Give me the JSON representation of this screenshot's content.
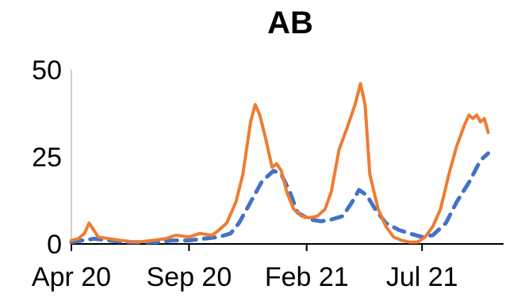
{
  "chart_data": {
    "type": "line",
    "title": "AB",
    "xlabel": "",
    "ylabel": "",
    "x_start": "2020-04-01",
    "x_end": "2021-10-15",
    "ylim": [
      0,
      50
    ],
    "yticks": [
      0,
      25,
      50
    ],
    "xticks": [
      {
        "label": "Apr 20",
        "date": "2020-04-01"
      },
      {
        "label": "Sep 20",
        "date": "2020-09-01"
      },
      {
        "label": "Feb 21",
        "date": "2021-02-01"
      },
      {
        "label": "Jul 21",
        "date": "2021-07-01"
      }
    ],
    "grid": false,
    "legend": "none",
    "series": [
      {
        "color": "#ED7D31",
        "style": "solid",
        "points": [
          [
            "2020-04-01",
            1
          ],
          [
            "2020-04-10",
            1.5
          ],
          [
            "2020-04-18",
            3
          ],
          [
            "2020-04-24",
            6
          ],
          [
            "2020-04-30",
            4
          ],
          [
            "2020-05-06",
            2
          ],
          [
            "2020-05-20",
            1.5
          ],
          [
            "2020-06-05",
            1
          ],
          [
            "2020-06-25",
            0.5
          ],
          [
            "2020-07-15",
            1
          ],
          [
            "2020-08-01",
            1.5
          ],
          [
            "2020-08-15",
            2.5
          ],
          [
            "2020-09-01",
            2
          ],
          [
            "2020-09-15",
            3
          ],
          [
            "2020-10-01",
            2.5
          ],
          [
            "2020-10-10",
            4
          ],
          [
            "2020-10-20",
            6
          ],
          [
            "2020-11-01",
            12
          ],
          [
            "2020-11-10",
            20
          ],
          [
            "2020-11-20",
            35
          ],
          [
            "2020-11-26",
            40
          ],
          [
            "2020-12-02",
            37
          ],
          [
            "2020-12-10",
            30
          ],
          [
            "2020-12-18",
            22
          ],
          [
            "2020-12-24",
            23
          ],
          [
            "2020-12-30",
            21
          ],
          [
            "2021-01-06",
            15
          ],
          [
            "2021-01-15",
            10
          ],
          [
            "2021-01-25",
            8
          ],
          [
            "2021-02-05",
            7.5
          ],
          [
            "2021-02-15",
            8
          ],
          [
            "2021-02-25",
            10
          ],
          [
            "2021-03-05",
            15
          ],
          [
            "2021-03-15",
            27
          ],
          [
            "2021-03-25",
            33
          ],
          [
            "2021-04-05",
            40
          ],
          [
            "2021-04-12",
            46
          ],
          [
            "2021-04-18",
            40
          ],
          [
            "2021-04-24",
            20
          ],
          [
            "2021-05-05",
            10
          ],
          [
            "2021-05-15",
            5
          ],
          [
            "2021-05-25",
            2
          ],
          [
            "2021-06-05",
            1
          ],
          [
            "2021-06-15",
            0.5
          ],
          [
            "2021-06-25",
            0.5
          ],
          [
            "2021-07-05",
            2
          ],
          [
            "2021-07-15",
            5
          ],
          [
            "2021-07-25",
            10
          ],
          [
            "2021-08-05",
            20
          ],
          [
            "2021-08-15",
            28
          ],
          [
            "2021-08-25",
            34
          ],
          [
            "2021-08-31",
            37
          ],
          [
            "2021-09-05",
            36
          ],
          [
            "2021-09-10",
            37
          ],
          [
            "2021-09-15",
            35
          ],
          [
            "2021-09-20",
            36
          ],
          [
            "2021-09-25",
            32
          ]
        ]
      },
      {
        "color": "#4472C4",
        "style": "dashed",
        "points": [
          [
            "2020-04-01",
            0.5
          ],
          [
            "2020-04-15",
            1
          ],
          [
            "2020-05-01",
            1.5
          ],
          [
            "2020-05-20",
            1
          ],
          [
            "2020-06-10",
            0.5
          ],
          [
            "2020-07-01",
            0.5
          ],
          [
            "2020-07-20",
            0.5
          ],
          [
            "2020-08-10",
            1
          ],
          [
            "2020-09-01",
            1
          ],
          [
            "2020-09-20",
            1.5
          ],
          [
            "2020-10-10",
            2
          ],
          [
            "2020-10-25",
            3
          ],
          [
            "2020-11-05",
            6
          ],
          [
            "2020-11-20",
            12
          ],
          [
            "2020-12-05",
            18
          ],
          [
            "2020-12-20",
            21
          ],
          [
            "2020-12-30",
            20
          ],
          [
            "2021-01-10",
            15
          ],
          [
            "2021-01-20",
            9
          ],
          [
            "2021-02-05",
            7
          ],
          [
            "2021-02-20",
            6.5
          ],
          [
            "2021-03-05",
            7
          ],
          [
            "2021-03-20",
            8
          ],
          [
            "2021-04-01",
            12
          ],
          [
            "2021-04-10",
            15.5
          ],
          [
            "2021-04-20",
            14
          ],
          [
            "2021-05-01",
            10
          ],
          [
            "2021-05-15",
            6
          ],
          [
            "2021-06-01",
            4
          ],
          [
            "2021-06-15",
            3
          ],
          [
            "2021-07-01",
            2
          ],
          [
            "2021-07-15",
            2.5
          ],
          [
            "2021-08-01",
            6
          ],
          [
            "2021-08-15",
            12
          ],
          [
            "2021-09-01",
            18
          ],
          [
            "2021-09-15",
            24
          ],
          [
            "2021-09-25",
            26
          ]
        ]
      }
    ]
  }
}
